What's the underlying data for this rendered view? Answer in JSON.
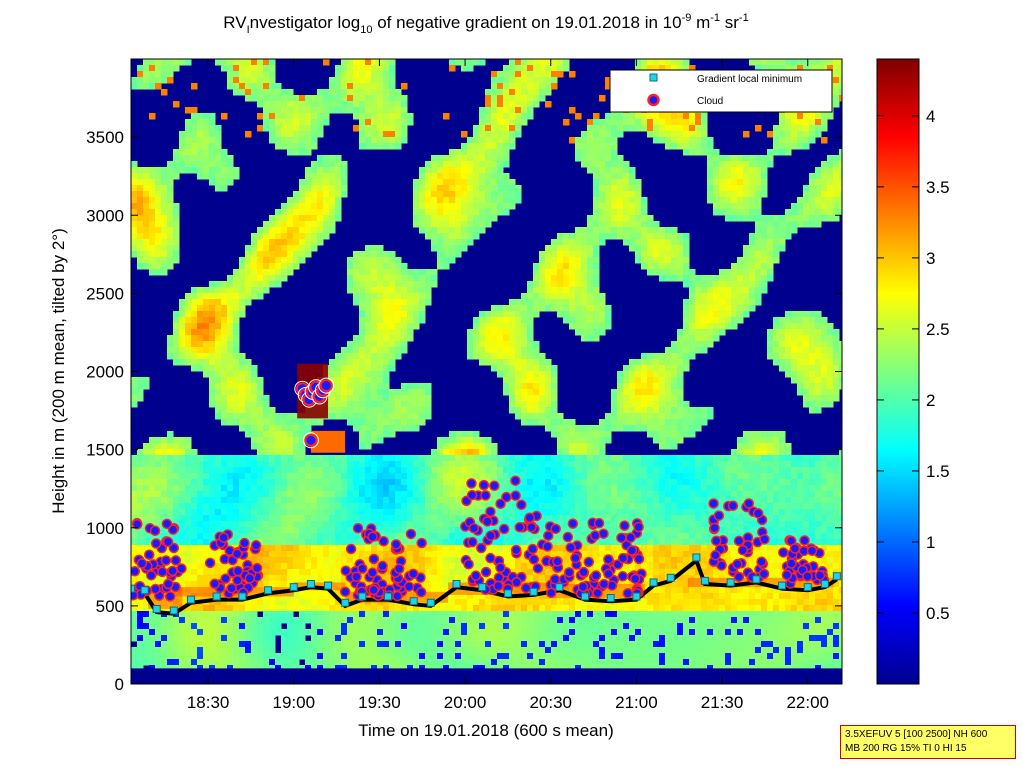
{
  "chart_data": {
    "type": "heatmap",
    "title": {
      "main": "RV",
      "sub_I": "I",
      "pre": "nvestigator log",
      "sub10": "10",
      "mid": " of negative gradient on 19.01.2018 in 10",
      "exp1": "-9",
      "unit_m": " m",
      "exp2": "-1",
      "unit_sr": " sr",
      "exp3": "-1"
    },
    "xlabel": "Time on 19.01.2018 (600 s mean)",
    "ylabel": "Height in m (200 m mean, tilted by 2°)",
    "x_range_hours": [
      18.05,
      22.2
    ],
    "x_ticks": [
      {
        "label": "18:30",
        "value": 18.5
      },
      {
        "label": "19:00",
        "value": 19.0
      },
      {
        "label": "19:30",
        "value": 19.5
      },
      {
        "label": "20:00",
        "value": 20.0
      },
      {
        "label": "20:30",
        "value": 20.5
      },
      {
        "label": "21:00",
        "value": 21.0
      },
      {
        "label": "21:30",
        "value": 21.5
      },
      {
        "label": "22:00",
        "value": 22.0
      }
    ],
    "y_range": [
      0,
      4000
    ],
    "y_ticks": [
      {
        "label": "0",
        "value": 0
      },
      {
        "label": "500",
        "value": 500
      },
      {
        "label": "1000",
        "value": 1000
      },
      {
        "label": "1500",
        "value": 1500
      },
      {
        "label": "2000",
        "value": 2000
      },
      {
        "label": "2500",
        "value": 2500
      },
      {
        "label": "3000",
        "value": 3000
      },
      {
        "label": "3500",
        "value": 3500
      }
    ],
    "colorbar": {
      "range": [
        0,
        4.4
      ],
      "ticks": [
        {
          "label": "0.5",
          "value": 0.5
        },
        {
          "label": "1",
          "value": 1
        },
        {
          "label": "1.5",
          "value": 1.5
        },
        {
          "label": "2",
          "value": 2
        },
        {
          "label": "2.5",
          "value": 2.5
        },
        {
          "label": "3",
          "value": 3
        },
        {
          "label": "3.5",
          "value": 3.5
        },
        {
          "label": "4",
          "value": 4
        }
      ]
    },
    "legend": {
      "placement": "top-right",
      "entries": [
        {
          "label": "Gradient local minimum",
          "marker": "square",
          "color": "#22d3e6"
        },
        {
          "label": "Cloud",
          "marker": "circle",
          "color": "#1a1aff",
          "edge": "#ff2020"
        }
      ]
    },
    "gradient_minimum": [
      {
        "x": 18.05,
        "y": 610
      },
      {
        "x": 18.13,
        "y": 600
      },
      {
        "x": 18.2,
        "y": 480
      },
      {
        "x": 18.3,
        "y": 470
      },
      {
        "x": 18.4,
        "y": 540
      },
      {
        "x": 18.55,
        "y": 560
      },
      {
        "x": 18.7,
        "y": 560
      },
      {
        "x": 18.85,
        "y": 600
      },
      {
        "x": 19.0,
        "y": 620
      },
      {
        "x": 19.1,
        "y": 640
      },
      {
        "x": 19.2,
        "y": 630
      },
      {
        "x": 19.3,
        "y": 520
      },
      {
        "x": 19.4,
        "y": 560
      },
      {
        "x": 19.55,
        "y": 560
      },
      {
        "x": 19.7,
        "y": 530
      },
      {
        "x": 19.8,
        "y": 520
      },
      {
        "x": 19.95,
        "y": 640
      },
      {
        "x": 20.1,
        "y": 620
      },
      {
        "x": 20.25,
        "y": 580
      },
      {
        "x": 20.4,
        "y": 590
      },
      {
        "x": 20.55,
        "y": 620
      },
      {
        "x": 20.7,
        "y": 560
      },
      {
        "x": 20.85,
        "y": 550
      },
      {
        "x": 21.0,
        "y": 560
      },
      {
        "x": 21.1,
        "y": 650
      },
      {
        "x": 21.2,
        "y": 680
      },
      {
        "x": 21.35,
        "y": 810
      },
      {
        "x": 21.4,
        "y": 660
      },
      {
        "x": 21.55,
        "y": 650
      },
      {
        "x": 21.7,
        "y": 670
      },
      {
        "x": 21.85,
        "y": 630
      },
      {
        "x": 22.0,
        "y": 620
      },
      {
        "x": 22.1,
        "y": 640
      },
      {
        "x": 22.17,
        "y": 690
      }
    ],
    "cloud_clusters": [
      {
        "x": [
          18.05,
          18.35
        ],
        "y": [
          560,
          1030
        ]
      },
      {
        "x": [
          18.5,
          18.8
        ],
        "y": [
          580,
          960
        ]
      },
      {
        "x": [
          19.3,
          19.75
        ],
        "y": [
          560,
          1010
        ]
      },
      {
        "x": [
          20.0,
          20.5
        ],
        "y": [
          590,
          1310
        ]
      },
      {
        "x": [
          20.5,
          21.05
        ],
        "y": [
          580,
          1050
        ]
      },
      {
        "x": [
          21.45,
          21.75
        ],
        "y": [
          680,
          1160
        ]
      },
      {
        "x": [
          21.85,
          22.1
        ],
        "y": [
          640,
          920
        ]
      }
    ],
    "cloud_high": [
      {
        "x": 19.05,
        "y": 1890
      },
      {
        "x": 19.07,
        "y": 1850
      },
      {
        "x": 19.09,
        "y": 1820
      },
      {
        "x": 19.11,
        "y": 1870
      },
      {
        "x": 19.13,
        "y": 1900
      },
      {
        "x": 19.15,
        "y": 1840
      },
      {
        "x": 19.17,
        "y": 1880
      },
      {
        "x": 19.19,
        "y": 1910
      },
      {
        "x": 19.1,
        "y": 1560
      }
    ],
    "cloud_rects": [
      {
        "t0": 18.15,
        "t1": 18.35,
        "y0": 480,
        "y1": 620
      },
      {
        "t0": 18.3,
        "t1": 19.0,
        "y0": 560,
        "y1": 620
      },
      {
        "t0": 19.0,
        "t1": 19.3,
        "y0": 600,
        "y1": 650
      },
      {
        "t0": 19.3,
        "t1": 19.9,
        "y0": 520,
        "y1": 590
      },
      {
        "t0": 19.9,
        "t1": 20.5,
        "y0": 570,
        "y1": 650
      },
      {
        "t0": 20.5,
        "t1": 21.05,
        "y0": 550,
        "y1": 640
      },
      {
        "t0": 21.3,
        "t1": 22.15,
        "y0": 620,
        "y1": 680
      }
    ]
  },
  "info_box": {
    "line1": "3.5XEFUV 5 [100 2500] NH 600",
    "line2": "MB 200 RG 15% TI 0 HI 15"
  },
  "colors": {
    "axis": "#000000",
    "background_low": "#00008f",
    "colormap": "jet",
    "legend_bg": "#ffffff",
    "info_box_bg": "#ffff66",
    "info_box_border": "#d00000"
  }
}
